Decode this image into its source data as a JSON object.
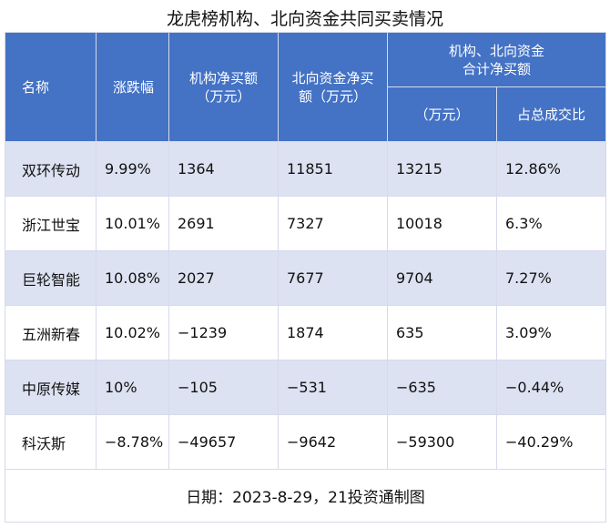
{
  "title": "龙虎榜机构、北向资金共同买卖情况",
  "headers": {
    "name": "名称",
    "change": "涨跌幅",
    "inst_line1": "机构净买额",
    "inst_line2": "（万元）",
    "north_line1": "北向资金净买",
    "north_line2": "额（万元）",
    "group_line1": "机构、北向资金",
    "group_line2": "合计净买额",
    "total_unit": "（万元）",
    "ratio": "占总成交比"
  },
  "rows": [
    {
      "name": "双环传动",
      "change": "9.99%",
      "inst": "1364",
      "north": "11851",
      "total": "13215",
      "ratio": "12.86%"
    },
    {
      "name": "浙江世宝",
      "change": "10.01%",
      "inst": "2691",
      "north": "7327",
      "total": "10018",
      "ratio": "6.3%"
    },
    {
      "name": "巨轮智能",
      "change": "10.08%",
      "inst": "2027",
      "north": "7677",
      "total": "9704",
      "ratio": "7.27%"
    },
    {
      "name": "五洲新春",
      "change": "10.02%",
      "inst": "−1239",
      "north": "1874",
      "total": "635",
      "ratio": "3.09%"
    },
    {
      "name": "中原传媒",
      "change": "10%",
      "inst": "−105",
      "north": "−531",
      "total": "−635",
      "ratio": "−0.44%"
    },
    {
      "name": "科沃斯",
      "change": "−8.78%",
      "inst": "−49657",
      "north": "−9642",
      "total": "−59300",
      "ratio": "−40.29%"
    }
  ],
  "footer": "日期：2023-8-29，21投资通制图"
}
